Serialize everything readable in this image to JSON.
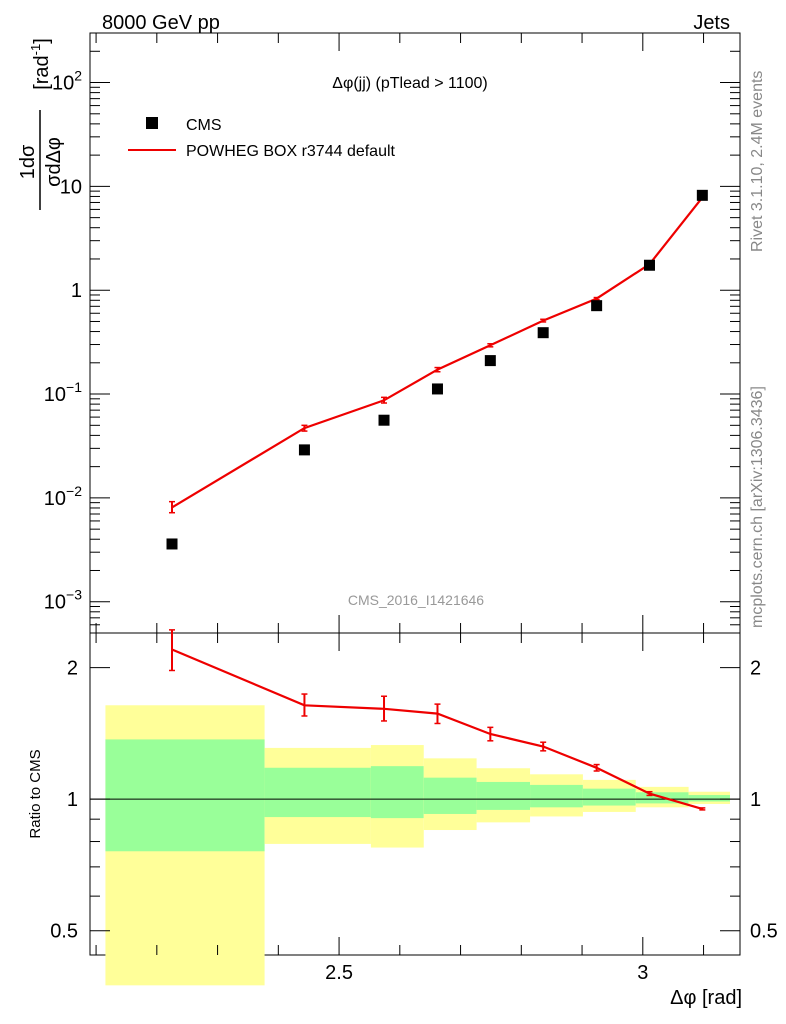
{
  "header": {
    "left": "8000 GeV pp",
    "right": "Jets"
  },
  "side": {
    "rivet": "Rivet 3.1.10,  2.4M events",
    "mcplots": "mcplots.cern.ch [arXiv:1306.3436]"
  },
  "chart_data": [
    {
      "type": "scatter",
      "title": "Δφ(jj) (pTlead >  1100)",
      "watermark": "CMS_2016_I1421646",
      "ylabel_parts": {
        "num": "1",
        "num_rest": "dσ",
        "den": "σ",
        "den_rest": "dΔφ",
        "unit": "[rad",
        "unit_exp": "-1",
        "unit_close": "]"
      },
      "yscale": "log",
      "ylim": [
        0.0005,
        300
      ],
      "xlim": [
        2.09,
        3.16
      ],
      "ytick_labels": [
        {
          "base": "10",
          "exp": "2",
          "value": 100
        },
        {
          "base": "10",
          "exp": "",
          "value": 10
        },
        {
          "base": "1",
          "exp": "",
          "value": 1
        },
        {
          "base": "10",
          "exp": "−1",
          "value": 0.1
        },
        {
          "base": "10",
          "exp": "−2",
          "value": 0.01
        },
        {
          "base": "10",
          "exp": "−3",
          "value": 0.001
        }
      ],
      "legend": {
        "position": "top-left",
        "entries": [
          "CMS",
          "POWHEG BOX r3744 default"
        ]
      },
      "series": [
        {
          "name": "CMS",
          "marker": "square",
          "color": "#000000",
          "x": [
            2.225,
            2.443,
            2.574,
            2.662,
            2.749,
            2.836,
            2.924,
            3.011,
            3.098
          ],
          "y": [
            0.0036,
            0.029,
            0.056,
            0.112,
            0.21,
            0.39,
            0.71,
            1.74,
            8.2
          ]
        },
        {
          "name": "POWHEG BOX r3744 default",
          "marker": "line",
          "color": "#ee0000",
          "x": [
            2.225,
            2.443,
            2.574,
            2.662,
            2.749,
            2.836,
            2.924,
            3.011,
            3.098
          ],
          "y": [
            0.0081,
            0.047,
            0.087,
            0.172,
            0.295,
            0.51,
            0.83,
            1.78,
            7.8
          ],
          "yerr_low": [
            0.0072,
            0.044,
            0.082,
            0.164,
            0.285,
            0.495,
            0.81,
            1.75,
            7.7
          ],
          "yerr_high": [
            0.0092,
            0.05,
            0.093,
            0.18,
            0.305,
            0.525,
            0.85,
            1.81,
            7.9
          ]
        }
      ]
    },
    {
      "type": "scatter",
      "ylabel": "Ratio to CMS",
      "xlabel": "Δφ [rad]",
      "yscale": "log",
      "ylim": [
        0.44,
        2.4
      ],
      "xlim": [
        2.09,
        3.16
      ],
      "xticks": [
        2.5,
        3.0
      ],
      "xtick_labels": [
        "2.5",
        "3"
      ],
      "yticks": [
        0.5,
        1,
        2
      ],
      "ytick_labels": [
        "0.5",
        "1",
        "2"
      ],
      "bands": {
        "x_edges": [
          2.094,
          2.356,
          2.531,
          2.618,
          2.705,
          2.793,
          2.88,
          2.967,
          3.054,
          3.142
        ],
        "green_low": [
          0.76,
          0.91,
          0.905,
          0.925,
          0.945,
          0.958,
          0.967,
          0.978,
          0.988
        ],
        "green_high": [
          1.37,
          1.18,
          1.19,
          1.12,
          1.095,
          1.078,
          1.057,
          1.037,
          1.022
        ],
        "yellow_low": [
          0.375,
          0.79,
          0.775,
          0.85,
          0.885,
          0.913,
          0.935,
          0.958,
          0.975
        ],
        "yellow_high": [
          1.64,
          1.31,
          1.33,
          1.24,
          1.177,
          1.14,
          1.107,
          1.067,
          1.04
        ],
        "green_color": "#99ff99",
        "yellow_color": "#ffff99"
      },
      "series": [
        {
          "name": "POWHEG BOX r3744 default",
          "color": "#ee0000",
          "x": [
            2.225,
            2.443,
            2.574,
            2.662,
            2.749,
            2.836,
            2.924,
            3.011,
            3.098
          ],
          "y": [
            2.2,
            1.64,
            1.61,
            1.57,
            1.41,
            1.32,
            1.18,
            1.03,
            0.95
          ],
          "yerr_low": [
            1.97,
            1.55,
            1.51,
            1.49,
            1.36,
            1.29,
            1.16,
            1.02,
            0.945
          ],
          "yerr_high": [
            2.44,
            1.74,
            1.72,
            1.65,
            1.46,
            1.35,
            1.2,
            1.04,
            0.955
          ]
        }
      ]
    }
  ]
}
